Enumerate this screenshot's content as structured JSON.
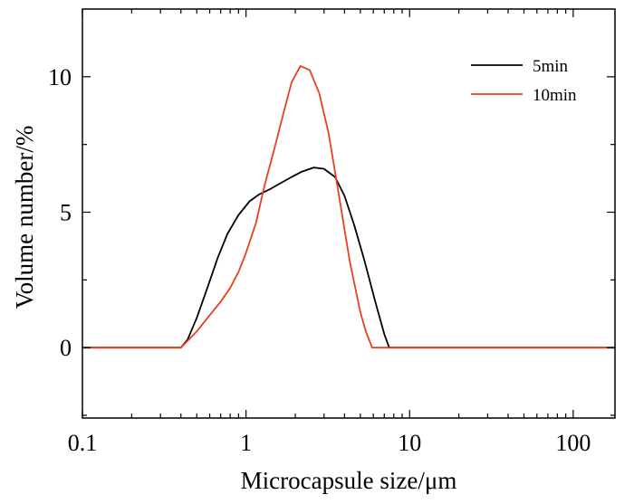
{
  "chart_data": {
    "type": "line",
    "xlabel": "Microcapsule size/μm",
    "ylabel": "Volume number/%",
    "xscale": "log",
    "xlim": [
      0.1,
      180
    ],
    "ylim": [
      -2.6,
      12.5
    ],
    "xticks": [
      0.1,
      1,
      10,
      100
    ],
    "xtick_labels": [
      "0.1",
      "1",
      "10",
      "100"
    ],
    "yticks": [
      0,
      5,
      10
    ],
    "ytick_labels": [
      "0",
      "5",
      "10"
    ],
    "grid": false,
    "legend_position": "top-right",
    "series": [
      {
        "name": "5min",
        "color": "#000000",
        "points": [
          [
            0.1,
            0
          ],
          [
            0.4,
            0
          ],
          [
            0.44,
            0.3
          ],
          [
            0.5,
            1.1
          ],
          [
            0.58,
            2.2
          ],
          [
            0.67,
            3.3
          ],
          [
            0.77,
            4.2
          ],
          [
            0.9,
            4.9
          ],
          [
            1.05,
            5.4
          ],
          [
            1.2,
            5.65
          ],
          [
            1.4,
            5.85
          ],
          [
            1.6,
            6.05
          ],
          [
            1.9,
            6.3
          ],
          [
            2.2,
            6.5
          ],
          [
            2.6,
            6.65
          ],
          [
            3.0,
            6.6
          ],
          [
            3.5,
            6.3
          ],
          [
            4.0,
            5.6
          ],
          [
            4.6,
            4.5
          ],
          [
            5.3,
            3.2
          ],
          [
            6.1,
            1.8
          ],
          [
            7.0,
            0.5
          ],
          [
            7.5,
            0
          ],
          [
            180,
            0
          ]
        ]
      },
      {
        "name": "10min",
        "color": "#e8401c",
        "points": [
          [
            0.1,
            0
          ],
          [
            0.4,
            0
          ],
          [
            0.5,
            0.6
          ],
          [
            0.6,
            1.2
          ],
          [
            0.7,
            1.7
          ],
          [
            0.8,
            2.2
          ],
          [
            0.9,
            2.8
          ],
          [
            1.0,
            3.5
          ],
          [
            1.15,
            4.6
          ],
          [
            1.3,
            6.0
          ],
          [
            1.5,
            7.4
          ],
          [
            1.7,
            8.7
          ],
          [
            1.9,
            9.8
          ],
          [
            2.15,
            10.4
          ],
          [
            2.45,
            10.25
          ],
          [
            2.8,
            9.4
          ],
          [
            3.2,
            7.9
          ],
          [
            3.7,
            5.6
          ],
          [
            4.3,
            3.2
          ],
          [
            5.0,
            1.3
          ],
          [
            5.4,
            0.6
          ],
          [
            5.9,
            0
          ],
          [
            180,
            0
          ]
        ]
      }
    ]
  }
}
